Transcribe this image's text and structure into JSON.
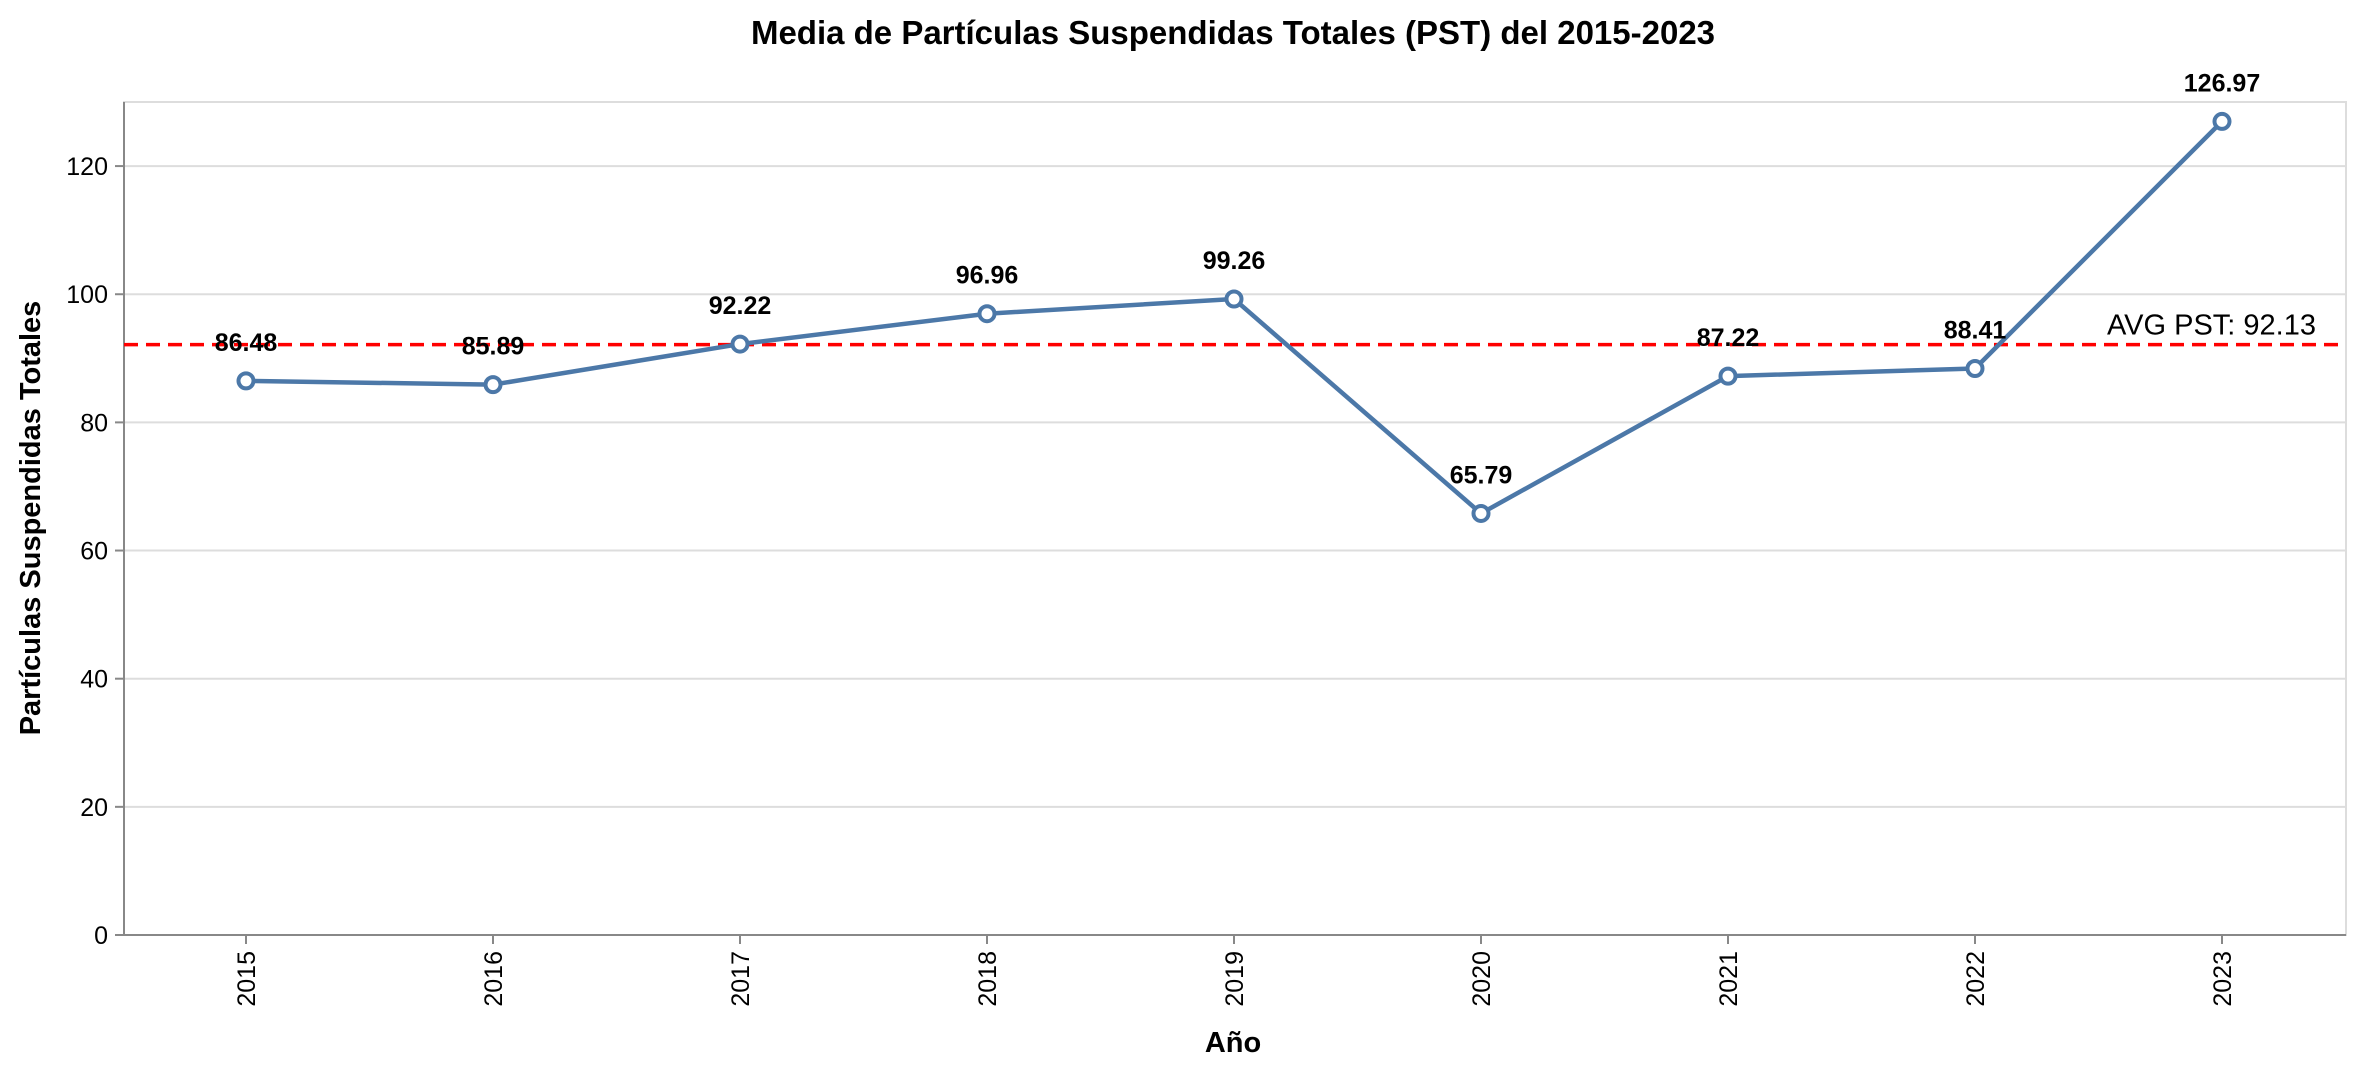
{
  "chart_data": {
    "type": "line",
    "title": "Media de Partículas Suspendidas Totales (PST) del 2015-2023",
    "xlabel": "Año",
    "ylabel": "Partículas Suspendidas Totales",
    "categories": [
      "2015",
      "2016",
      "2017",
      "2018",
      "2019",
      "2020",
      "2021",
      "2022",
      "2023"
    ],
    "series": [
      {
        "values": [
          86.48,
          85.89,
          92.22,
          96.96,
          99.26,
          65.79,
          87.22,
          88.41,
          126.97
        ],
        "labels": [
          "86.48",
          "85.89",
          "92.22",
          "96.96",
          "99.26",
          "65.79",
          "87.22",
          "88.41",
          "126.97"
        ],
        "color": "#4c78a8"
      }
    ],
    "ylim": [
      0,
      130
    ],
    "yticks": [
      "0",
      "20",
      "40",
      "60",
      "80",
      "100",
      "120"
    ],
    "grid": true,
    "reference_line": {
      "value": 92.13,
      "label": "AVG PST: 92.13",
      "color": "#ff0000",
      "style": "dashed"
    }
  }
}
